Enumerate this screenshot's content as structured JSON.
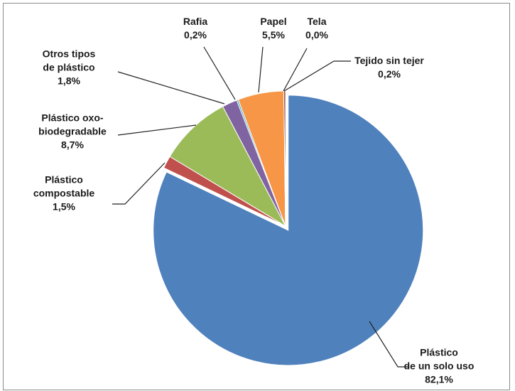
{
  "chart_data": {
    "type": "pie",
    "categories": [
      "Plástico\nde un solo uso",
      "Plástico\ncompostable",
      "Plástico oxo-\nbiodegradable",
      "Otros tipos\nde plástico",
      "Rafia",
      "Papel",
      "Tela",
      "Tejido sin tejer"
    ],
    "values": [
      82.1,
      1.5,
      8.7,
      1.8,
      0.2,
      5.5,
      0.0,
      0.2
    ],
    "value_labels": [
      "82,1%",
      "1,5%",
      "8,7%",
      "1,8%",
      "0,2%",
      "5,5%",
      "0,0%",
      "0,2%"
    ],
    "colors": [
      "#4f81bd",
      "#c0504d",
      "#9bbb59",
      "#8064a2",
      "#4bacc6",
      "#f79646",
      "#2c4d75",
      "#772c2a"
    ]
  }
}
